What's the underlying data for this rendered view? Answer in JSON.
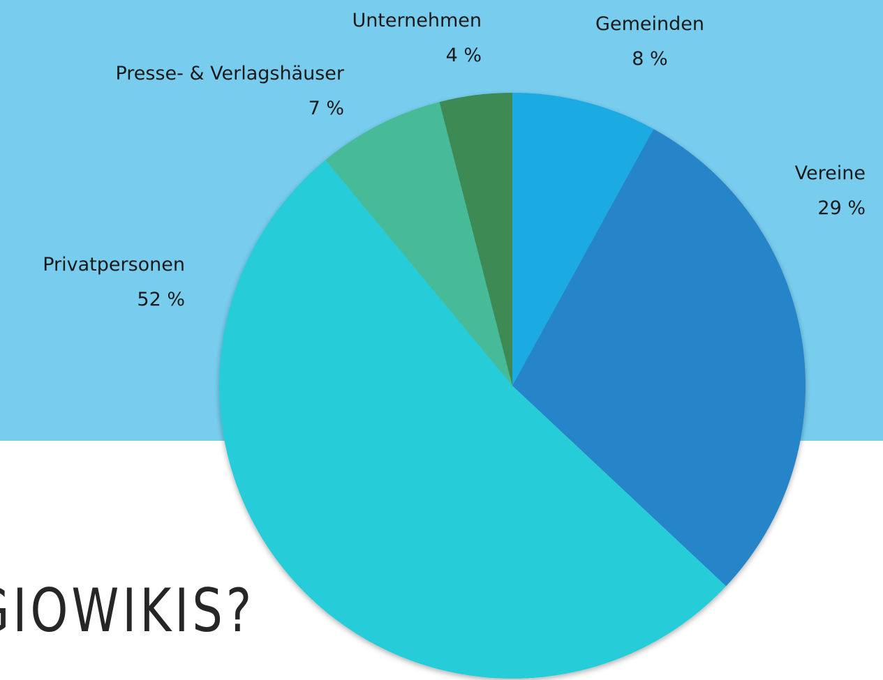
{
  "slide_title": "GIOWIKIS?",
  "chart_data": {
    "type": "pie",
    "categories": [
      "Gemeinden",
      "Vereine",
      "Privatpersonen",
      "Presse- & Verlagshäuser",
      "Unternehmen"
    ],
    "values": [
      8,
      29,
      52,
      7,
      4
    ],
    "value_labels": [
      "8 %",
      "29 %",
      "52 %",
      "7 %",
      "4 %"
    ],
    "colors": [
      "#1eaae2",
      "#2884c8",
      "#28cdd8",
      "#46bb98",
      "#3d8a55"
    ]
  }
}
